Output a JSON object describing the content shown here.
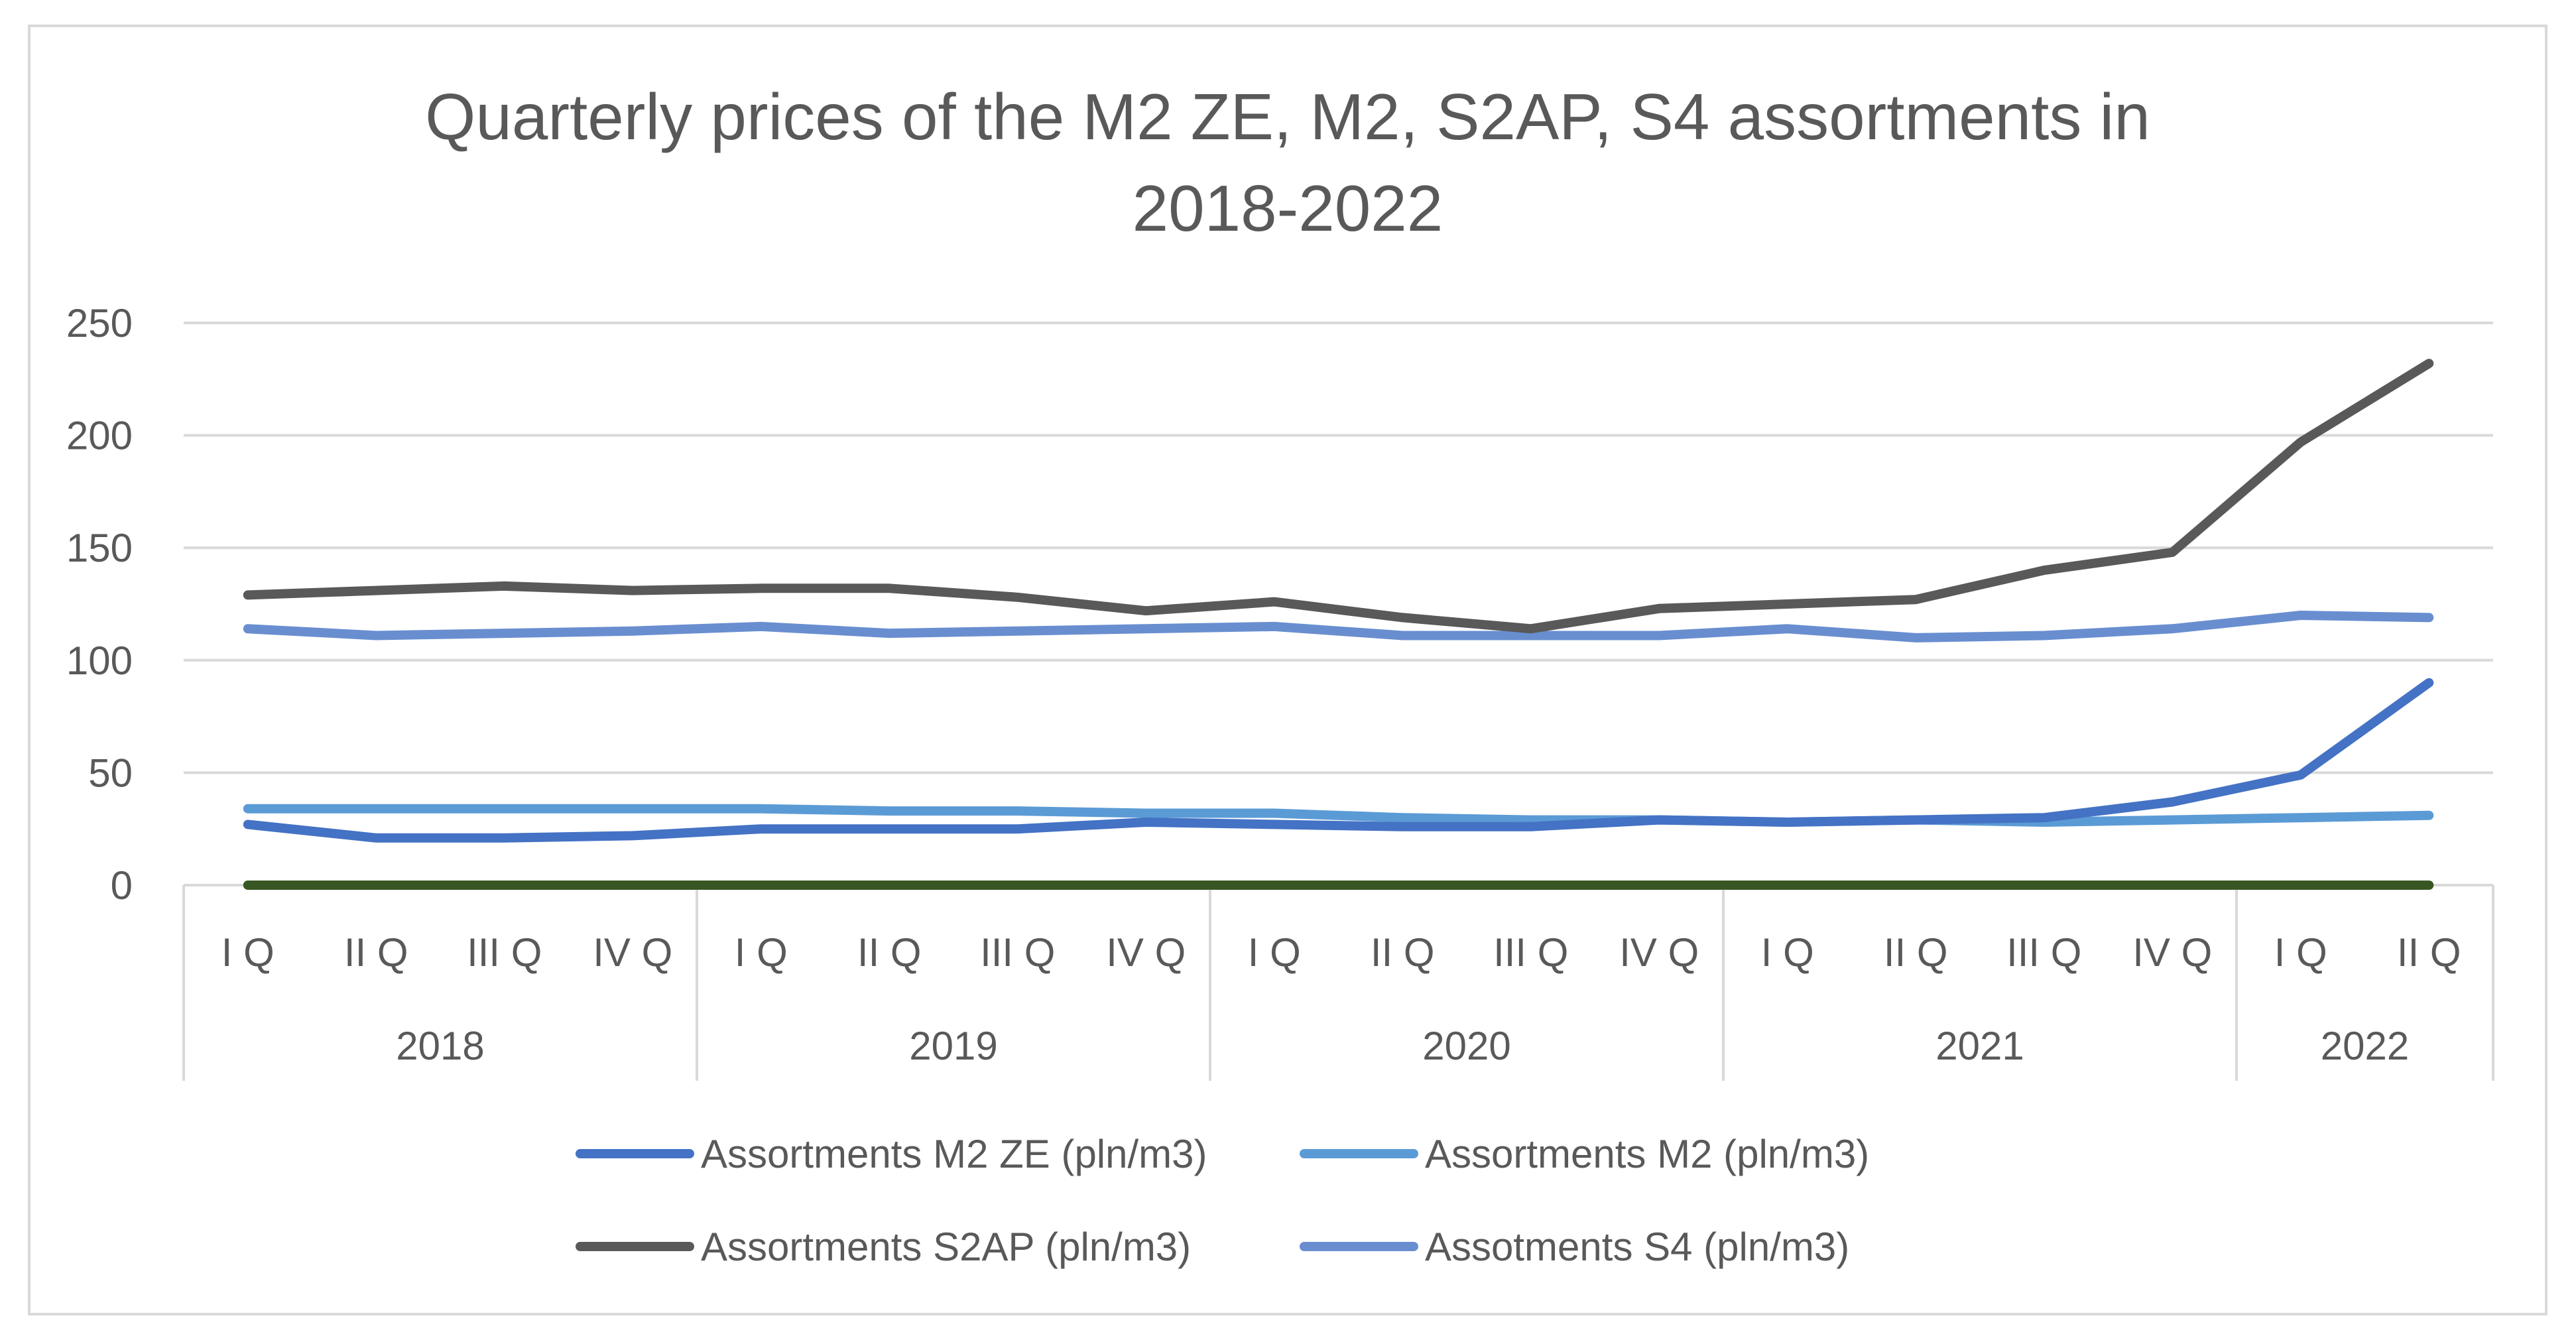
{
  "chart_data": {
    "type": "line",
    "title_lines": [
      "Quarterly prices of the M2 ZE, M2, S2AP, S4 assortments in",
      "2018-2022"
    ],
    "xlabel": "",
    "ylabel": "",
    "ylim": [
      0,
      250
    ],
    "yticks": [
      "0",
      "50",
      "100",
      "150",
      "200",
      "250"
    ],
    "grid": true,
    "legend_position": "bottom",
    "quarters": [
      "I Q",
      "II Q",
      "III Q",
      "IV Q",
      "I Q",
      "II Q",
      "III Q",
      "IV Q",
      "I Q",
      "II Q",
      "III Q",
      "IV Q",
      "I Q",
      "II Q",
      "III Q",
      "IV Q",
      "I Q",
      "II Q"
    ],
    "years": [
      {
        "label": "2018",
        "count": 4
      },
      {
        "label": "2019",
        "count": 4
      },
      {
        "label": "2020",
        "count": 4
      },
      {
        "label": "2021",
        "count": 4
      },
      {
        "label": "2022",
        "count": 2
      }
    ],
    "series": [
      {
        "name": "Assortments M2 ZE  (pln/m3)",
        "color": "#4472c4",
        "values": [
          27,
          21,
          21,
          22,
          25,
          25,
          25,
          28,
          27,
          26,
          26,
          29,
          28,
          29,
          30,
          37,
          49,
          90
        ]
      },
      {
        "name": "Assortments M2 (pln/m3)",
        "color": "#5b9bd5",
        "values": [
          34,
          34,
          34,
          34,
          34,
          33,
          33,
          32,
          32,
          30,
          29,
          29,
          28,
          29,
          28,
          29,
          30,
          31
        ]
      },
      {
        "name": "Assortments S2AP  (pln/m3)",
        "color": "#595959",
        "values": [
          129,
          131,
          133,
          131,
          132,
          132,
          128,
          122,
          126,
          119,
          114,
          123,
          125,
          127,
          140,
          148,
          197,
          232
        ]
      },
      {
        "name": "Assotments S4 (pln/m3)",
        "color": "#698ed0",
        "values": [
          114,
          111,
          112,
          113,
          115,
          112,
          113,
          114,
          115,
          111,
          111,
          111,
          114,
          110,
          111,
          114,
          120,
          119
        ]
      },
      {
        "name": "",
        "color": "#375623",
        "values": [
          0,
          0,
          0,
          0,
          0,
          0,
          0,
          0,
          0,
          0,
          0,
          0,
          0,
          0,
          0,
          0,
          0,
          0
        ]
      }
    ],
    "legend": [
      "Assortments M2 ZE  (pln/m3)",
      "Assortments M2 (pln/m3)",
      "Assortments S2AP  (pln/m3)",
      "Assotments S4 (pln/m3)"
    ]
  }
}
